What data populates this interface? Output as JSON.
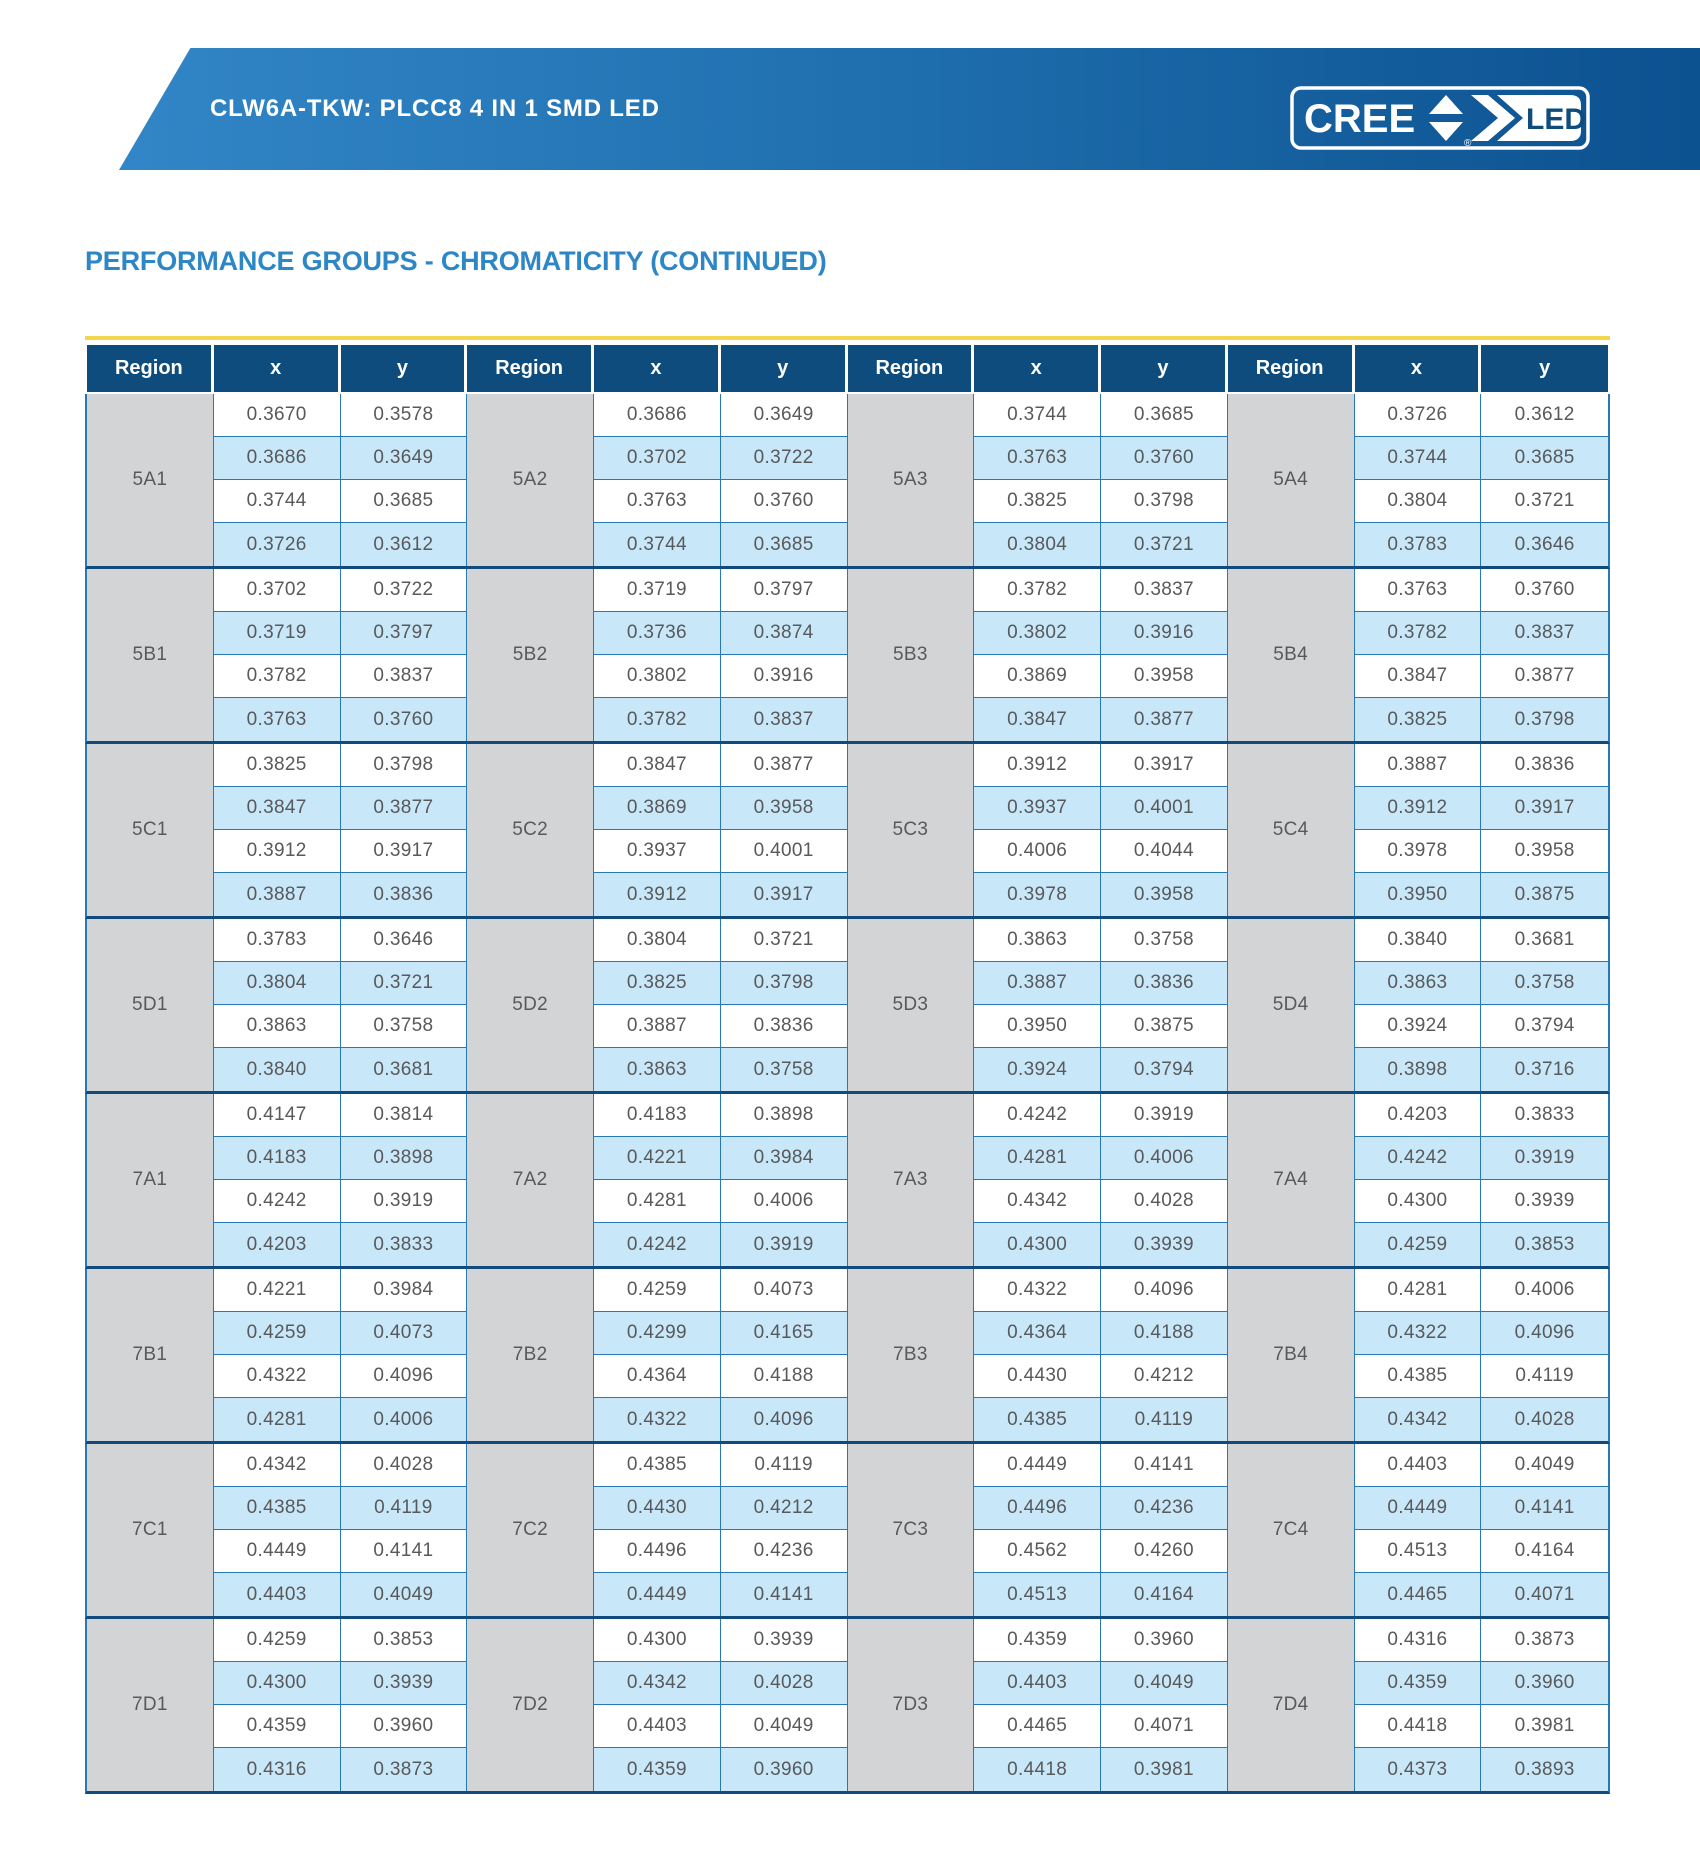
{
  "banner": {
    "product_title": "CLW6A-TKW: PLCC8 4 IN 1 SMD LED"
  },
  "logo": {
    "cree_text": "CREE",
    "led_text": "LED",
    "registered_mark": "®"
  },
  "section": {
    "title": "PERFORMANCE GROUPS - CHROMATICITY (CONTINUED)"
  },
  "colors": {
    "banner_gradient_left": "#3589ca",
    "banner_gradient_right": "#0c5190",
    "header_navy": "#0e4c7e",
    "cell_border_blue": "#2878b6",
    "group_separator_navy": "#114b7d",
    "alt_row_blue": "#c8e7f8",
    "region_gray": "#d3d4d6",
    "title_blue": "#2d87c6",
    "rule_yellow": "#f2d74e",
    "text_gray": "#58595b"
  },
  "table": {
    "column_headers": [
      "Region",
      "x",
      "y"
    ],
    "column_sets": 4,
    "groups": [
      {
        "regions": [
          {
            "label": "5A1",
            "points": [
              [
                "0.3670",
                "0.3578"
              ],
              [
                "0.3686",
                "0.3649"
              ],
              [
                "0.3744",
                "0.3685"
              ],
              [
                "0.3726",
                "0.3612"
              ]
            ]
          },
          {
            "label": "5A2",
            "points": [
              [
                "0.3686",
                "0.3649"
              ],
              [
                "0.3702",
                "0.3722"
              ],
              [
                "0.3763",
                "0.3760"
              ],
              [
                "0.3744",
                "0.3685"
              ]
            ]
          },
          {
            "label": "5A3",
            "points": [
              [
                "0.3744",
                "0.3685"
              ],
              [
                "0.3763",
                "0.3760"
              ],
              [
                "0.3825",
                "0.3798"
              ],
              [
                "0.3804",
                "0.3721"
              ]
            ]
          },
          {
            "label": "5A4",
            "points": [
              [
                "0.3726",
                "0.3612"
              ],
              [
                "0.3744",
                "0.3685"
              ],
              [
                "0.3804",
                "0.3721"
              ],
              [
                "0.3783",
                "0.3646"
              ]
            ]
          }
        ]
      },
      {
        "regions": [
          {
            "label": "5B1",
            "points": [
              [
                "0.3702",
                "0.3722"
              ],
              [
                "0.3719",
                "0.3797"
              ],
              [
                "0.3782",
                "0.3837"
              ],
              [
                "0.3763",
                "0.3760"
              ]
            ]
          },
          {
            "label": "5B2",
            "points": [
              [
                "0.3719",
                "0.3797"
              ],
              [
                "0.3736",
                "0.3874"
              ],
              [
                "0.3802",
                "0.3916"
              ],
              [
                "0.3782",
                "0.3837"
              ]
            ]
          },
          {
            "label": "5B3",
            "points": [
              [
                "0.3782",
                "0.3837"
              ],
              [
                "0.3802",
                "0.3916"
              ],
              [
                "0.3869",
                "0.3958"
              ],
              [
                "0.3847",
                "0.3877"
              ]
            ]
          },
          {
            "label": "5B4",
            "points": [
              [
                "0.3763",
                "0.3760"
              ],
              [
                "0.3782",
                "0.3837"
              ],
              [
                "0.3847",
                "0.3877"
              ],
              [
                "0.3825",
                "0.3798"
              ]
            ]
          }
        ]
      },
      {
        "regions": [
          {
            "label": "5C1",
            "points": [
              [
                "0.3825",
                "0.3798"
              ],
              [
                "0.3847",
                "0.3877"
              ],
              [
                "0.3912",
                "0.3917"
              ],
              [
                "0.3887",
                "0.3836"
              ]
            ]
          },
          {
            "label": "5C2",
            "points": [
              [
                "0.3847",
                "0.3877"
              ],
              [
                "0.3869",
                "0.3958"
              ],
              [
                "0.3937",
                "0.4001"
              ],
              [
                "0.3912",
                "0.3917"
              ]
            ]
          },
          {
            "label": "5C3",
            "points": [
              [
                "0.3912",
                "0.3917"
              ],
              [
                "0.3937",
                "0.4001"
              ],
              [
                "0.4006",
                "0.4044"
              ],
              [
                "0.3978",
                "0.3958"
              ]
            ]
          },
          {
            "label": "5C4",
            "points": [
              [
                "0.3887",
                "0.3836"
              ],
              [
                "0.3912",
                "0.3917"
              ],
              [
                "0.3978",
                "0.3958"
              ],
              [
                "0.3950",
                "0.3875"
              ]
            ]
          }
        ]
      },
      {
        "regions": [
          {
            "label": "5D1",
            "points": [
              [
                "0.3783",
                "0.3646"
              ],
              [
                "0.3804",
                "0.3721"
              ],
              [
                "0.3863",
                "0.3758"
              ],
              [
                "0.3840",
                "0.3681"
              ]
            ]
          },
          {
            "label": "5D2",
            "points": [
              [
                "0.3804",
                "0.3721"
              ],
              [
                "0.3825",
                "0.3798"
              ],
              [
                "0.3887",
                "0.3836"
              ],
              [
                "0.3863",
                "0.3758"
              ]
            ]
          },
          {
            "label": "5D3",
            "points": [
              [
                "0.3863",
                "0.3758"
              ],
              [
                "0.3887",
                "0.3836"
              ],
              [
                "0.3950",
                "0.3875"
              ],
              [
                "0.3924",
                "0.3794"
              ]
            ]
          },
          {
            "label": "5D4",
            "points": [
              [
                "0.3840",
                "0.3681"
              ],
              [
                "0.3863",
                "0.3758"
              ],
              [
                "0.3924",
                "0.3794"
              ],
              [
                "0.3898",
                "0.3716"
              ]
            ]
          }
        ]
      },
      {
        "regions": [
          {
            "label": "7A1",
            "points": [
              [
                "0.4147",
                "0.3814"
              ],
              [
                "0.4183",
                "0.3898"
              ],
              [
                "0.4242",
                "0.3919"
              ],
              [
                "0.4203",
                "0.3833"
              ]
            ]
          },
          {
            "label": "7A2",
            "points": [
              [
                "0.4183",
                "0.3898"
              ],
              [
                "0.4221",
                "0.3984"
              ],
              [
                "0.4281",
                "0.4006"
              ],
              [
                "0.4242",
                "0.3919"
              ]
            ]
          },
          {
            "label": "7A3",
            "points": [
              [
                "0.4242",
                "0.3919"
              ],
              [
                "0.4281",
                "0.4006"
              ],
              [
                "0.4342",
                "0.4028"
              ],
              [
                "0.4300",
                "0.3939"
              ]
            ]
          },
          {
            "label": "7A4",
            "points": [
              [
                "0.4203",
                "0.3833"
              ],
              [
                "0.4242",
                "0.3919"
              ],
              [
                "0.4300",
                "0.3939"
              ],
              [
                "0.4259",
                "0.3853"
              ]
            ]
          }
        ]
      },
      {
        "regions": [
          {
            "label": "7B1",
            "points": [
              [
                "0.4221",
                "0.3984"
              ],
              [
                "0.4259",
                "0.4073"
              ],
              [
                "0.4322",
                "0.4096"
              ],
              [
                "0.4281",
                "0.4006"
              ]
            ]
          },
          {
            "label": "7B2",
            "points": [
              [
                "0.4259",
                "0.4073"
              ],
              [
                "0.4299",
                "0.4165"
              ],
              [
                "0.4364",
                "0.4188"
              ],
              [
                "0.4322",
                "0.4096"
              ]
            ]
          },
          {
            "label": "7B3",
            "points": [
              [
                "0.4322",
                "0.4096"
              ],
              [
                "0.4364",
                "0.4188"
              ],
              [
                "0.4430",
                "0.4212"
              ],
              [
                "0.4385",
                "0.4119"
              ]
            ]
          },
          {
            "label": "7B4",
            "points": [
              [
                "0.4281",
                "0.4006"
              ],
              [
                "0.4322",
                "0.4096"
              ],
              [
                "0.4385",
                "0.4119"
              ],
              [
                "0.4342",
                "0.4028"
              ]
            ]
          }
        ]
      },
      {
        "regions": [
          {
            "label": "7C1",
            "points": [
              [
                "0.4342",
                "0.4028"
              ],
              [
                "0.4385",
                "0.4119"
              ],
              [
                "0.4449",
                "0.4141"
              ],
              [
                "0.4403",
                "0.4049"
              ]
            ]
          },
          {
            "label": "7C2",
            "points": [
              [
                "0.4385",
                "0.4119"
              ],
              [
                "0.4430",
                "0.4212"
              ],
              [
                "0.4496",
                "0.4236"
              ],
              [
                "0.4449",
                "0.4141"
              ]
            ]
          },
          {
            "label": "7C3",
            "points": [
              [
                "0.4449",
                "0.4141"
              ],
              [
                "0.4496",
                "0.4236"
              ],
              [
                "0.4562",
                "0.4260"
              ],
              [
                "0.4513",
                "0.4164"
              ]
            ]
          },
          {
            "label": "7C4",
            "points": [
              [
                "0.4403",
                "0.4049"
              ],
              [
                "0.4449",
                "0.4141"
              ],
              [
                "0.4513",
                "0.4164"
              ],
              [
                "0.4465",
                "0.4071"
              ]
            ]
          }
        ]
      },
      {
        "regions": [
          {
            "label": "7D1",
            "points": [
              [
                "0.4259",
                "0.3853"
              ],
              [
                "0.4300",
                "0.3939"
              ],
              [
                "0.4359",
                "0.3960"
              ],
              [
                "0.4316",
                "0.3873"
              ]
            ]
          },
          {
            "label": "7D2",
            "points": [
              [
                "0.4300",
                "0.3939"
              ],
              [
                "0.4342",
                "0.4028"
              ],
              [
                "0.4403",
                "0.4049"
              ],
              [
                "0.4359",
                "0.3960"
              ]
            ]
          },
          {
            "label": "7D3",
            "points": [
              [
                "0.4359",
                "0.3960"
              ],
              [
                "0.4403",
                "0.4049"
              ],
              [
                "0.4465",
                "0.4071"
              ],
              [
                "0.4418",
                "0.3981"
              ]
            ]
          },
          {
            "label": "7D4",
            "points": [
              [
                "0.4316",
                "0.3873"
              ],
              [
                "0.4359",
                "0.3960"
              ],
              [
                "0.4418",
                "0.3981"
              ],
              [
                "0.4373",
                "0.3893"
              ]
            ]
          }
        ]
      }
    ]
  }
}
